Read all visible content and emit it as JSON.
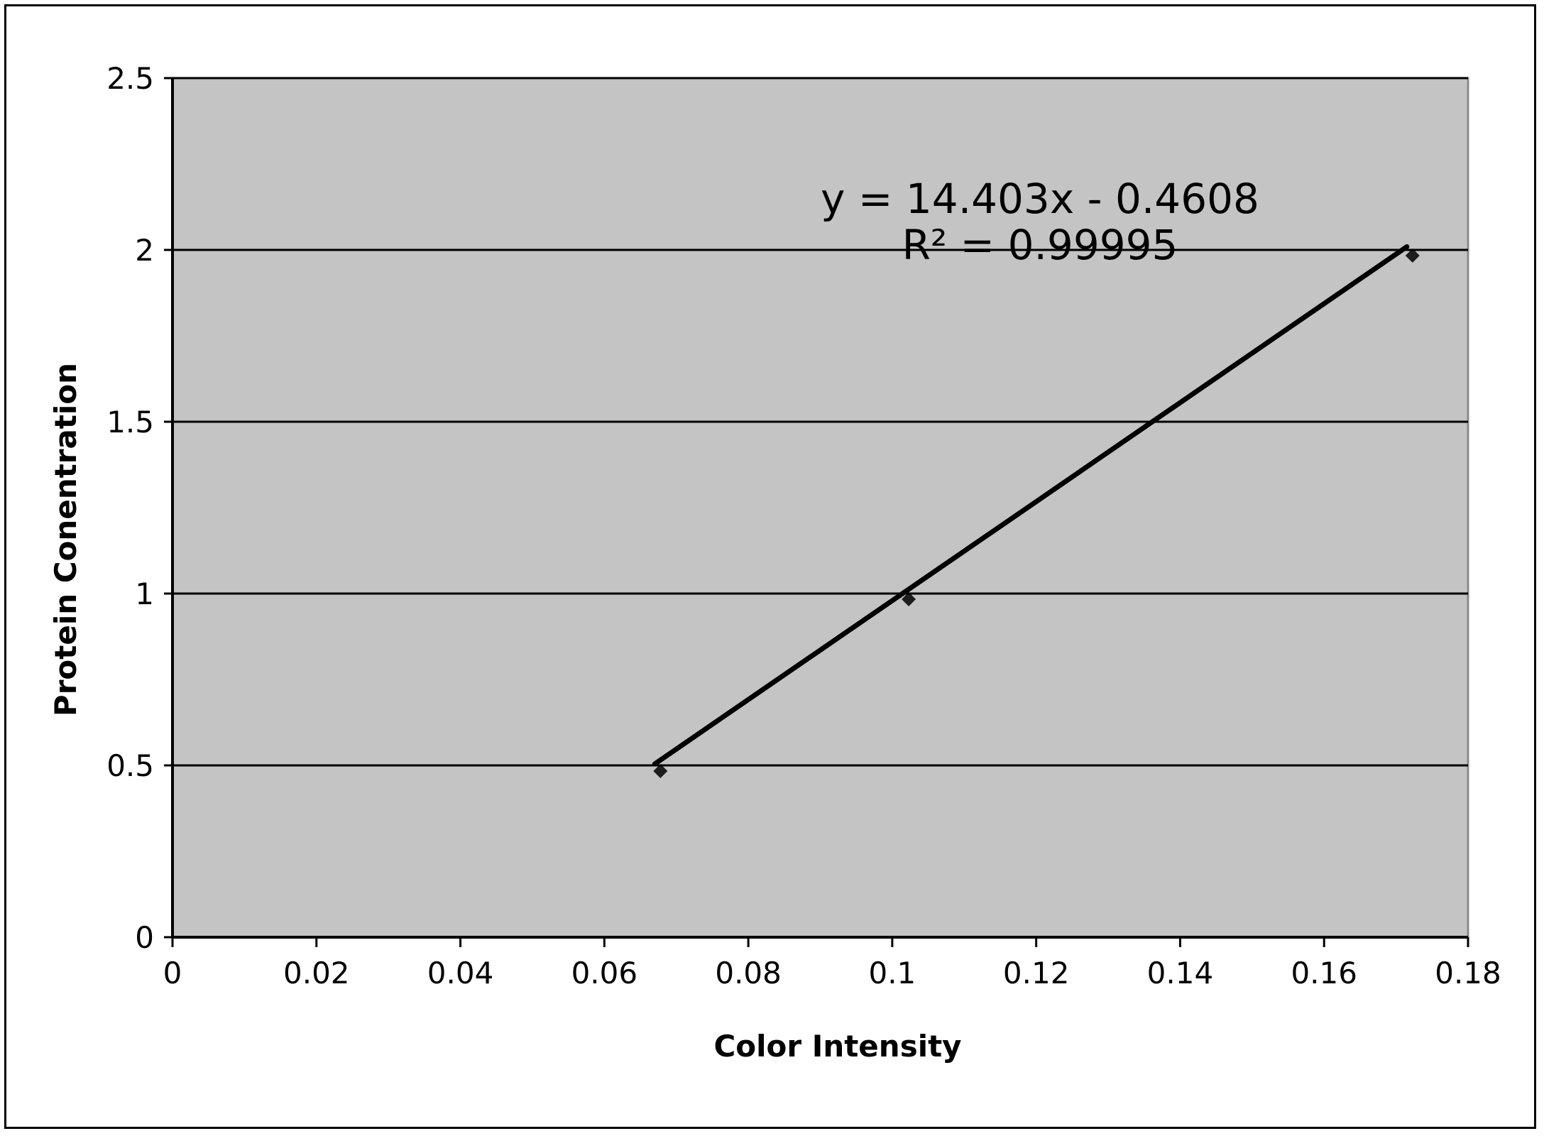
{
  "chart_data": {
    "type": "scatter",
    "title": "",
    "xlabel": "Color Intensity",
    "ylabel": "Protein Conentration",
    "xlim": [
      0,
      0.18
    ],
    "ylim": [
      0,
      2.5
    ],
    "x_ticks": [
      "0",
      "0.02",
      "0.04",
      "0.06",
      "0.08",
      "0.1",
      "0.12",
      "0.14",
      "0.16",
      "0.18"
    ],
    "y_ticks": [
      "0",
      "0.5",
      "1",
      "1.5",
      "2",
      "2.5"
    ],
    "grid": "horizontal",
    "legend": "none",
    "plot_background": "#c4c4c4",
    "series": [
      {
        "points": [
          {
            "x": 0.067,
            "y": 0.5
          },
          {
            "x": 0.1015,
            "y": 1.0
          },
          {
            "x": 0.1715,
            "y": 2.0
          }
        ],
        "color": "#000000"
      }
    ],
    "trendline": {
      "type": "linear",
      "slope": 14.403,
      "intercept": -0.4608,
      "x_range": [
        0.067,
        0.1715
      ],
      "equation": "y = 14.403x - 0.4608",
      "r_squared": "R² = 0.99995"
    }
  }
}
